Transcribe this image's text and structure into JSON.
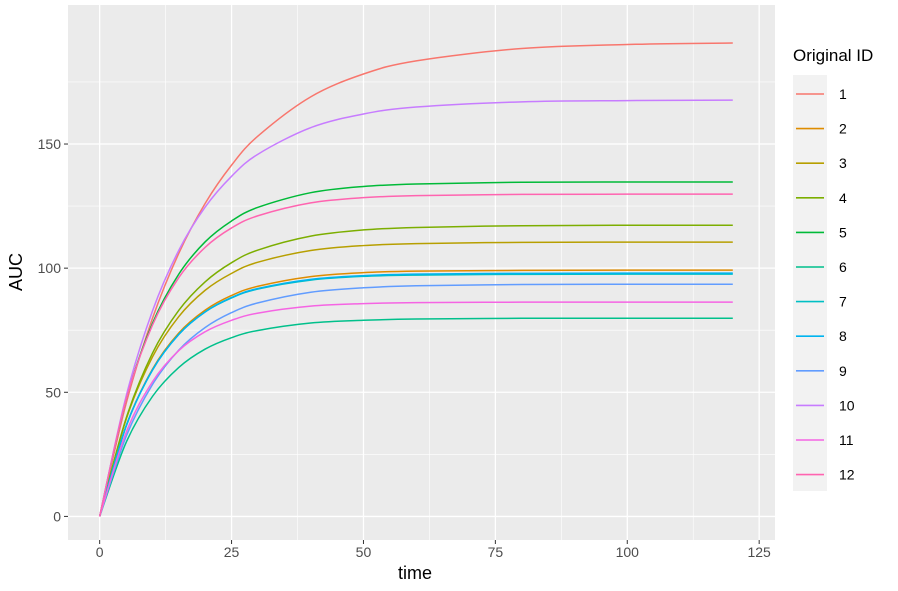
{
  "chart_data": {
    "type": "line",
    "title": "",
    "xlabel": "time",
    "ylabel": "AUC",
    "xlim": [
      -6,
      128
    ],
    "ylim": [
      -9.5,
      206
    ],
    "x_ticks": [
      0,
      25,
      50,
      75,
      100,
      125
    ],
    "y_ticks": [
      0,
      50,
      100,
      150
    ],
    "grid": true,
    "legend": {
      "title": "Original ID",
      "placement": "right"
    },
    "x": [
      0,
      5,
      10,
      15,
      20,
      25,
      30,
      40,
      50,
      60,
      80,
      100,
      120
    ],
    "series": [
      {
        "name": "1",
        "color": "#F8766D",
        "values": [
          0,
          45.3,
          79.7,
          106.0,
          126.1,
          141.5,
          153.2,
          169.0,
          178.2,
          183.5,
          188.5,
          190.1,
          190.7
        ]
      },
      {
        "name": "2",
        "color": "#DE8C00",
        "values": [
          0,
          36.3,
          59.3,
          73.9,
          83.1,
          89.0,
          92.7,
          96.6,
          98.2,
          98.8,
          99.1,
          99.2,
          99.2
        ]
      },
      {
        "name": "3",
        "color": "#B79F00",
        "values": [
          0,
          39.0,
          64.2,
          80.5,
          91.1,
          97.9,
          102.4,
          107.1,
          109.1,
          109.9,
          110.4,
          110.5,
          110.5
        ]
      },
      {
        "name": "4",
        "color": "#7CAE00",
        "values": [
          0,
          39.4,
          65.7,
          83.0,
          94.5,
          102.2,
          107.3,
          112.9,
          115.4,
          116.4,
          117.1,
          117.3,
          117.3
        ]
      },
      {
        "name": "5",
        "color": "#00BA38",
        "values": [
          0,
          47.0,
          77.7,
          97.6,
          110.6,
          119.0,
          124.5,
          130.4,
          132.9,
          133.9,
          134.6,
          134.7,
          134.7
        ]
      },
      {
        "name": "6",
        "color": "#00C08B",
        "values": [
          0,
          29.7,
          48.3,
          60.0,
          67.4,
          72.0,
          74.9,
          77.9,
          79.0,
          79.5,
          79.8,
          79.8,
          79.8
        ]
      },
      {
        "name": "7",
        "color": "#00BFC4",
        "values": [
          0,
          36.3,
          59.0,
          73.4,
          82.4,
          88.0,
          91.6,
          95.2,
          96.7,
          97.2,
          97.5,
          97.6,
          97.6
        ]
      },
      {
        "name": "8",
        "color": "#00B4F0",
        "values": [
          0,
          36.2,
          58.9,
          73.3,
          82.4,
          88.2,
          91.8,
          95.5,
          97.0,
          97.6,
          97.9,
          98.0,
          98.0
        ]
      },
      {
        "name": "9",
        "color": "#619CFF",
        "values": [
          0,
          32.1,
          53.1,
          67.0,
          76.1,
          82.1,
          86.0,
          90.3,
          92.1,
          92.9,
          93.4,
          93.5,
          93.5
        ]
      },
      {
        "name": "10",
        "color": "#C77CFF",
        "values": [
          0,
          48.3,
          82.7,
          107.2,
          124.6,
          137.0,
          145.9,
          156.6,
          162.1,
          164.9,
          167.0,
          167.5,
          167.7
        ]
      },
      {
        "name": "11",
        "color": "#F564E3",
        "values": [
          0,
          33.7,
          54.2,
          66.8,
          74.4,
          79.0,
          81.9,
          84.7,
          85.7,
          86.1,
          86.3,
          86.3,
          86.3
        ]
      },
      {
        "name": "12",
        "color": "#FF64B0",
        "values": [
          0,
          47.0,
          77.0,
          96.2,
          108.4,
          116.2,
          121.1,
          126.3,
          128.4,
          129.2,
          129.7,
          129.8,
          129.8
        ]
      }
    ]
  }
}
